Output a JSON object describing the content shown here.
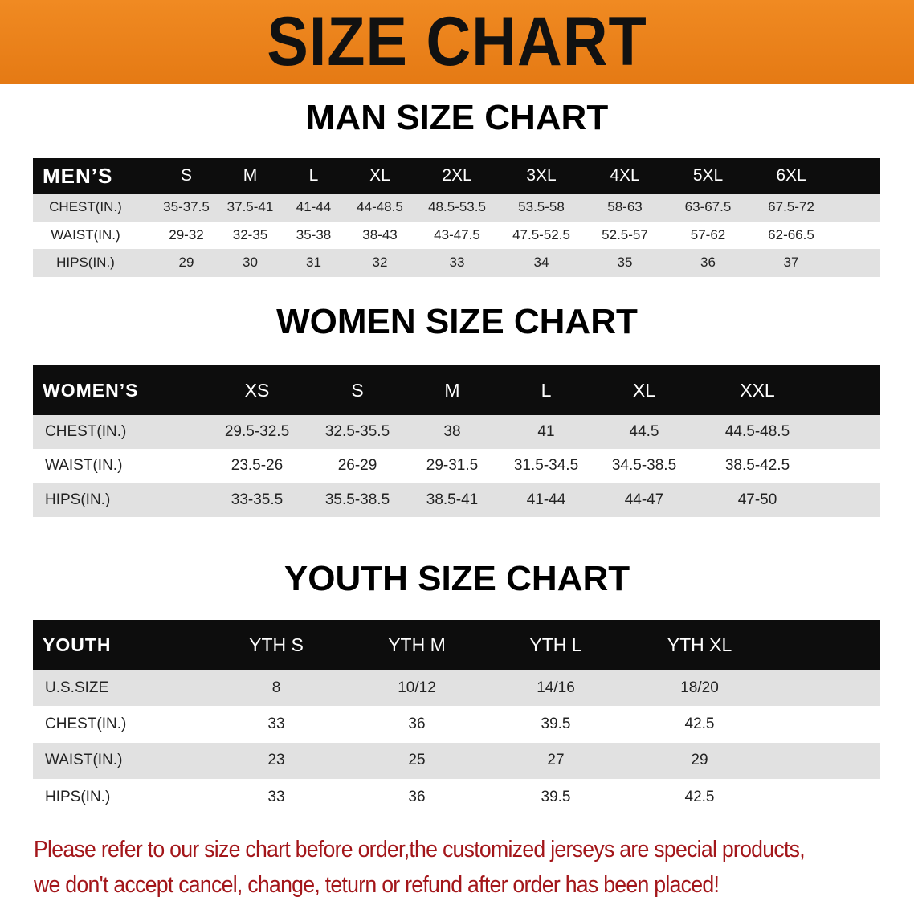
{
  "banner": {
    "title": "SIZE CHART",
    "color": "#ec8219"
  },
  "men": {
    "heading": "MAN SIZE CHART",
    "header": [
      "MEN’S",
      "S",
      "M",
      "L",
      "XL",
      "2XL",
      "3XL",
      "4XL",
      "5XL",
      "6XL"
    ],
    "rows": [
      [
        "CHEST(IN.)",
        "35-37.5",
        "37.5-41",
        "41-44",
        "44-48.5",
        "48.5-53.5",
        "53.5-58",
        "58-63",
        "63-67.5",
        "67.5-72"
      ],
      [
        "WAIST(IN.)",
        "29-32",
        "32-35",
        "35-38",
        "38-43",
        "43-47.5",
        "47.5-52.5",
        "52.5-57",
        "57-62",
        "62-66.5"
      ],
      [
        "HIPS(IN.)",
        "29",
        "30",
        "31",
        "32",
        "33",
        "34",
        "35",
        "36",
        "37"
      ]
    ]
  },
  "women": {
    "heading": "WOMEN SIZE CHART",
    "header": [
      "WOMEN’S",
      "XS",
      "S",
      "M",
      "L",
      "XL",
      "XXL"
    ],
    "rows": [
      [
        "CHEST(IN.)",
        "29.5-32.5",
        "32.5-35.5",
        "38",
        "41",
        "44.5",
        "44.5-48.5"
      ],
      [
        "WAIST(IN.)",
        "23.5-26",
        "26-29",
        "29-31.5",
        "31.5-34.5",
        "34.5-38.5",
        "38.5-42.5"
      ],
      [
        "HIPS(IN.)",
        "33-35.5",
        "35.5-38.5",
        "38.5-41",
        "41-44",
        "44-47",
        "47-50"
      ]
    ]
  },
  "youth": {
    "heading": "YOUTH SIZE CHART",
    "header": [
      "YOUTH",
      "YTH S",
      "YTH M",
      "YTH L",
      "YTH XL"
    ],
    "rows": [
      [
        "U.S.SIZE",
        "8",
        "10/12",
        "14/16",
        "18/20"
      ],
      [
        "CHEST(IN.)",
        "33",
        "36",
        "39.5",
        "42.5"
      ],
      [
        "WAIST(IN.)",
        "23",
        "25",
        "27",
        "29"
      ],
      [
        "HIPS(IN.)",
        "33",
        "36",
        "39.5",
        "42.5"
      ]
    ]
  },
  "note": {
    "line1": "Please refer to our size chart before order,the customized jerseys are special products,",
    "line2": "we don't accept cancel, change, teturn or refund after order has been placed!",
    "color": "#a3161a"
  }
}
